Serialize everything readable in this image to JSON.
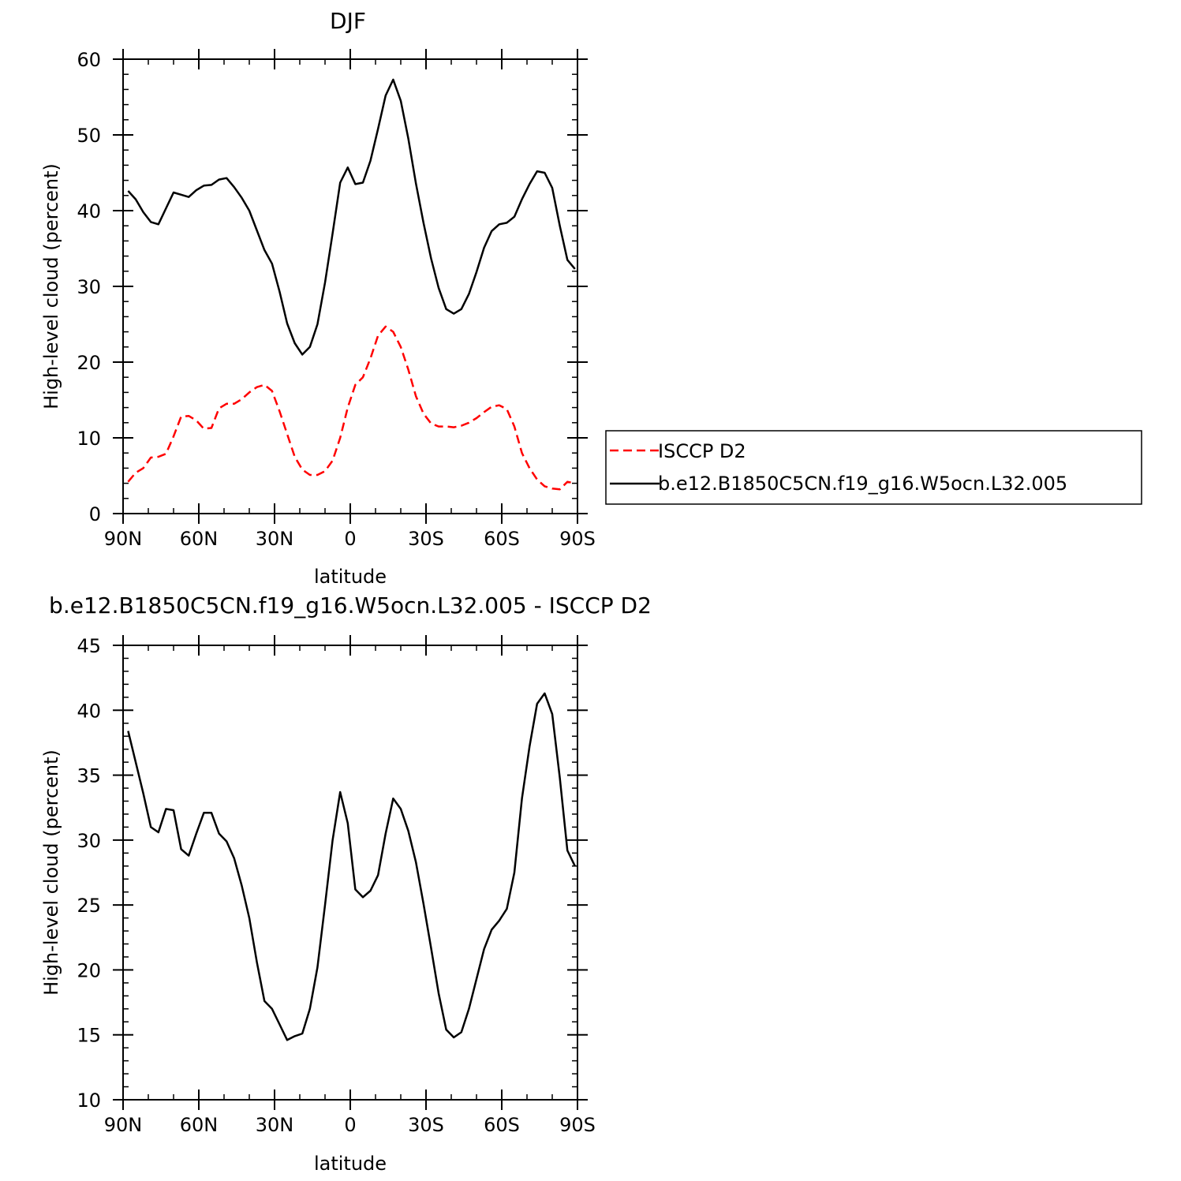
{
  "chart_data": [
    {
      "type": "line",
      "title": "DJF",
      "xlabel": "latitude",
      "ylabel": "High-level cloud (percent)",
      "xlim": [
        90,
        -90
      ],
      "ylim": [
        0,
        60
      ],
      "xticks": [
        90,
        60,
        30,
        0,
        -30,
        -60,
        -90
      ],
      "xtick_labels": [
        "90N",
        "60N",
        "30N",
        "0",
        "30S",
        "60S",
        "90S"
      ],
      "yticks": [
        0,
        10,
        20,
        30,
        40,
        50,
        60
      ],
      "ytick_labels": [
        "0",
        "10",
        "20",
        "30",
        "40",
        "50",
        "60"
      ],
      "grid": false,
      "legend_position": "right",
      "series": [
        {
          "name": "ISCCP D2",
          "color": "#ff0000",
          "dash": "dashed",
          "x": [
            88,
            85,
            82,
            79,
            76,
            73,
            70,
            67,
            64,
            61,
            58,
            55,
            52,
            49,
            46,
            43,
            40,
            37,
            34,
            31,
            28,
            25,
            22,
            19,
            16,
            13,
            10,
            7,
            4,
            1,
            -2,
            -5,
            -8,
            -11,
            -14,
            -17,
            -20,
            -23,
            -26,
            -29,
            -32,
            -35,
            -38,
            -41,
            -44,
            -47,
            -50,
            -53,
            -56,
            -59,
            -62,
            -65,
            -68,
            -71,
            -74,
            -77,
            -80,
            -83,
            -86,
            -89
          ],
          "y": [
            4.2,
            5.4,
            6.0,
            7.4,
            7.5,
            7.9,
            10.2,
            12.8,
            12.9,
            12.3,
            11.2,
            11.3,
            13.9,
            14.5,
            14.5,
            15.1,
            16.0,
            16.7,
            17.0,
            16.2,
            13.5,
            10.5,
            7.5,
            5.8,
            5.1,
            5.1,
            5.6,
            7.0,
            10.0,
            14.0,
            17.0,
            18.0,
            20.5,
            23.5,
            24.7,
            24.0,
            22.0,
            19.0,
            15.5,
            13.2,
            11.9,
            11.5,
            11.5,
            11.4,
            11.6,
            12.0,
            12.6,
            13.4,
            14.1,
            14.3,
            13.8,
            11.5,
            8.0,
            6.0,
            4.5,
            3.6,
            3.3,
            3.2,
            4.2,
            4.0
          ]
        },
        {
          "name": "b.e12.B1850C5CN.f19_g16.W5ocn.L32.005",
          "color": "#000000",
          "dash": "solid",
          "x": [
            88,
            85,
            82,
            79,
            76,
            73,
            70,
            67,
            64,
            61,
            58,
            55,
            52,
            49,
            46,
            43,
            40,
            37,
            34,
            31,
            28,
            25,
            22,
            19,
            16,
            13,
            10,
            7,
            4,
            1,
            -2,
            -5,
            -8,
            -11,
            -14,
            -17,
            -20,
            -23,
            -26,
            -29,
            -32,
            -35,
            -38,
            -41,
            -44,
            -47,
            -50,
            -53,
            -56,
            -59,
            -62,
            -65,
            -68,
            -71,
            -74,
            -77,
            -80,
            -83,
            -86,
            -89
          ],
          "y": [
            42.6,
            41.5,
            39.8,
            38.5,
            38.2,
            40.3,
            42.4,
            42.1,
            41.8,
            42.7,
            43.3,
            43.4,
            44.1,
            44.3,
            43.1,
            41.7,
            40.0,
            37.4,
            34.8,
            33.0,
            29.3,
            25.1,
            22.5,
            21.0,
            22.0,
            25.0,
            30.5,
            37.0,
            43.7,
            45.7,
            43.5,
            43.7,
            46.6,
            50.8,
            55.2,
            57.3,
            54.5,
            49.5,
            43.6,
            38.4,
            33.7,
            29.8,
            27.0,
            26.4,
            27.0,
            29.0,
            31.9,
            35.1,
            37.3,
            38.2,
            38.4,
            39.2,
            41.5,
            43.5,
            45.2,
            45.0,
            43.0,
            38.0,
            33.5,
            32.3
          ]
        }
      ]
    },
    {
      "type": "line",
      "title": "b.e12.B1850C5CN.f19_g16.W5ocn.L32.005 - ISCCP D2",
      "xlabel": "latitude",
      "ylabel": "High-level cloud (percent)",
      "xlim": [
        90,
        -90
      ],
      "ylim": [
        10,
        45
      ],
      "xticks": [
        90,
        60,
        30,
        0,
        -30,
        -60,
        -90
      ],
      "xtick_labels": [
        "90N",
        "60N",
        "30N",
        "0",
        "30S",
        "60S",
        "90S"
      ],
      "yticks": [
        10,
        15,
        20,
        25,
        30,
        35,
        40,
        45
      ],
      "ytick_labels": [
        "10",
        "15",
        "20",
        "25",
        "30",
        "35",
        "40",
        "45"
      ],
      "grid": false,
      "series": [
        {
          "color": "#000000",
          "dash": "solid",
          "x": [
            88,
            85,
            82,
            79,
            76,
            73,
            70,
            67,
            64,
            61,
            58,
            55,
            52,
            49,
            46,
            43,
            40,
            37,
            34,
            31,
            28,
            25,
            22,
            19,
            16,
            13,
            10,
            7,
            4,
            1,
            -2,
            -5,
            -8,
            -11,
            -14,
            -17,
            -20,
            -23,
            -26,
            -29,
            -32,
            -35,
            -38,
            -41,
            -44,
            -47,
            -50,
            -53,
            -56,
            -59,
            -62,
            -65,
            -68,
            -71,
            -74,
            -77,
            -80,
            -83,
            -86,
            -89
          ],
          "y": [
            38.4,
            36.0,
            33.6,
            31.0,
            30.6,
            32.4,
            32.3,
            29.3,
            28.8,
            30.5,
            32.1,
            32.1,
            30.5,
            29.9,
            28.6,
            26.5,
            24.0,
            20.6,
            17.6,
            17.0,
            15.8,
            14.6,
            14.9,
            15.1,
            17.0,
            20.2,
            25.0,
            30.0,
            33.7,
            31.3,
            26.2,
            25.6,
            26.1,
            27.3,
            30.5,
            33.2,
            32.4,
            30.7,
            28.3,
            25.1,
            21.7,
            18.2,
            15.4,
            14.8,
            15.2,
            17.0,
            19.3,
            21.6,
            23.1,
            23.8,
            24.7,
            27.5,
            33.2,
            37.2,
            40.5,
            41.3,
            39.7,
            34.8,
            29.2,
            28.0
          ]
        }
      ]
    }
  ]
}
